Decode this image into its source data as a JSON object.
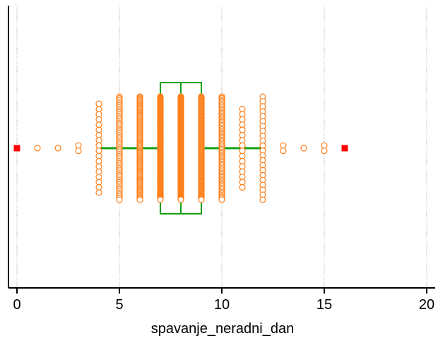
{
  "chart_data": {
    "type": "scatter",
    "subtype": "box-and-dot-plot",
    "title": "",
    "xlabel": "spavanje_neradni_dan",
    "ylabel": "",
    "xlim": [
      0,
      20
    ],
    "x_ticks": [
      {
        "value": 0,
        "label": "0"
      },
      {
        "value": 5,
        "label": "5"
      },
      {
        "value": 10,
        "label": "10"
      },
      {
        "value": 15,
        "label": "15"
      },
      {
        "value": 20,
        "label": "20"
      }
    ],
    "grid": {
      "vertical": true,
      "horizontal": false
    },
    "box": {
      "q1": 7,
      "median": 8,
      "q3": 9,
      "whisker_low": 4,
      "whisker_high": 12
    },
    "outliers": [
      0,
      16
    ],
    "value_stacks": [
      {
        "x": 1,
        "count": 1
      },
      {
        "x": 2,
        "count": 1
      },
      {
        "x": 3,
        "count": 2
      },
      {
        "x": 4,
        "count": 18
      },
      {
        "x": 5,
        "count": 60
      },
      {
        "x": 6,
        "count": 90
      },
      {
        "x": 7,
        "count": 150
      },
      {
        "x": 8,
        "count": 160
      },
      {
        "x": 9,
        "count": 120
      },
      {
        "x": 10,
        "count": 70
      },
      {
        "x": 11,
        "count": 16
      },
      {
        "x": 12,
        "count": 22
      },
      {
        "x": 13,
        "count": 2
      },
      {
        "x": 14,
        "count": 1
      },
      {
        "x": 15,
        "count": 2
      }
    ],
    "colors": {
      "points": "#ff7f1a",
      "box": "#12a012",
      "outlier": "#ff0000",
      "grid": "#a0a0a0",
      "axis": "#000000"
    }
  }
}
